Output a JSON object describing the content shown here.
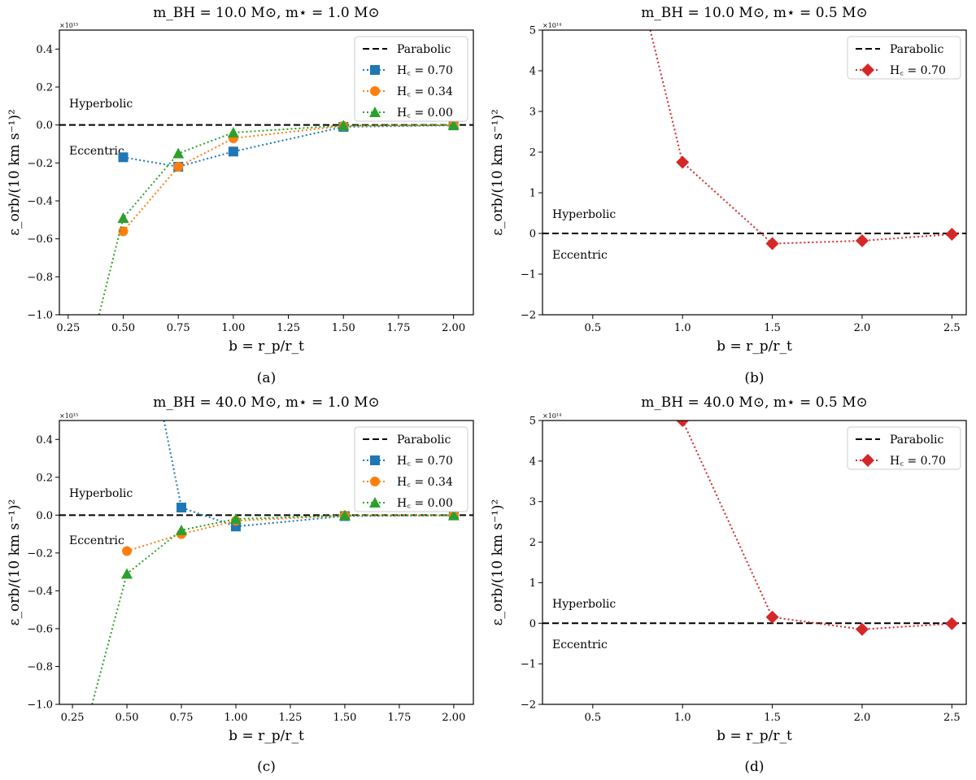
{
  "colors": {
    "blue": "#1f77b4",
    "orange": "#ff7f0e",
    "green": "#2ca02c",
    "red": "#d62728"
  },
  "chart_data": [
    {
      "type": "line",
      "title": "m_BH = 10.0 M⊙, m⋆ = 1.0 M⊙",
      "caption": "(a)",
      "xlabel": "b = r_p/r_t",
      "ylabel": "ε_orb/(10 km s⁻¹)²",
      "multiplier": "×10¹⁵",
      "xlim": [
        0.21,
        2.09
      ],
      "ylim": [
        -1.0,
        0.5
      ],
      "xticks": [
        0.25,
        0.5,
        0.75,
        1.0,
        1.25,
        1.5,
        1.75,
        2.0
      ],
      "xtick_labels": [
        "0.25",
        "0.50",
        "0.75",
        "1.00",
        "1.25",
        "1.50",
        "1.75",
        "2.00"
      ],
      "yticks": [
        -1.0,
        -0.8,
        -0.6,
        -0.4,
        -0.2,
        0.0,
        0.2,
        0.4
      ],
      "ytick_labels": [
        "−1.0",
        "−0.8",
        "−0.6",
        "−0.4",
        "−0.2",
        "0.0",
        "0.2",
        "0.4"
      ],
      "region_labels": {
        "upper": "Hyperbolic",
        "lower": "Eccentric"
      },
      "parabolic_label": "Parabolic",
      "series": [
        {
          "name": "H_c = 0.70",
          "color": "#1f77b4",
          "marker": "square",
          "x": [
            0.5,
            0.75,
            1.0,
            1.5,
            2.0
          ],
          "y": [
            -0.17,
            -0.22,
            -0.14,
            -0.01,
            -0.002
          ]
        },
        {
          "name": "H_c = 0.34",
          "color": "#ff7f0e",
          "marker": "circle",
          "x": [
            0.5,
            0.75,
            1.0,
            1.5,
            2.0
          ],
          "y": [
            -0.56,
            -0.22,
            -0.07,
            -0.005,
            -0.001
          ]
        },
        {
          "name": "H_c = 0.00",
          "color": "#2ca02c",
          "marker": "triangle",
          "x": [
            0.39,
            0.5,
            0.75,
            1.0,
            1.5,
            2.0
          ],
          "y": [
            -1.0,
            -0.49,
            -0.15,
            -0.04,
            -0.003,
            -0.001
          ]
        }
      ]
    },
    {
      "type": "line",
      "title": "m_BH = 10.0 M⊙, m⋆ = 0.5 M⊙",
      "caption": "(b)",
      "xlabel": "b = r_p/r_t",
      "ylabel": "ε_orb/(10 km s⁻¹)²",
      "multiplier": "×10¹⁴",
      "xlim": [
        0.22,
        2.58
      ],
      "ylim": [
        -2,
        5
      ],
      "xticks": [
        0.5,
        1.0,
        1.5,
        2.0,
        2.5
      ],
      "xtick_labels": [
        "0.5",
        "1.0",
        "1.5",
        "2.0",
        "2.5"
      ],
      "yticks": [
        -2,
        -1,
        0,
        1,
        2,
        3,
        4,
        5
      ],
      "ytick_labels": [
        "−2",
        "−1",
        "0",
        "1",
        "2",
        "3",
        "4",
        "5"
      ],
      "region_labels": {
        "upper": "Hyperbolic",
        "lower": "Eccentric"
      },
      "parabolic_label": "Parabolic",
      "series": [
        {
          "name": "H_c = 0.70",
          "color": "#d62728",
          "marker": "diamond",
          "x": [
            0.82,
            1.0,
            1.5,
            2.0,
            2.5
          ],
          "y": [
            5.0,
            1.75,
            -0.25,
            -0.18,
            -0.02
          ]
        }
      ]
    },
    {
      "type": "line",
      "title": "m_BH = 40.0 M⊙, m⋆ = 1.0 M⊙",
      "caption": "(c)",
      "xlabel": "b = r_p/r_t",
      "ylabel": "ε_orb/(10 km s⁻¹)²",
      "multiplier": "×10¹⁵",
      "xlim": [
        0.19,
        2.09
      ],
      "ylim": [
        -1.0,
        0.5
      ],
      "xticks": [
        0.25,
        0.5,
        0.75,
        1.0,
        1.25,
        1.5,
        1.75,
        2.0
      ],
      "xtick_labels": [
        "0.25",
        "0.50",
        "0.75",
        "1.00",
        "1.25",
        "1.50",
        "1.75",
        "2.00"
      ],
      "yticks": [
        -1.0,
        -0.8,
        -0.6,
        -0.4,
        -0.2,
        0.0,
        0.2,
        0.4
      ],
      "ytick_labels": [
        "−1.0",
        "−0.8",
        "−0.6",
        "−0.4",
        "−0.2",
        "0.0",
        "0.2",
        "0.4"
      ],
      "region_labels": {
        "upper": "Hyperbolic",
        "lower": "Eccentric"
      },
      "parabolic_label": "Parabolic",
      "series": [
        {
          "name": "H_c = 0.70",
          "color": "#1f77b4",
          "marker": "square",
          "x": [
            0.67,
            0.75,
            1.0,
            1.5,
            2.0
          ],
          "y": [
            0.5,
            0.04,
            -0.06,
            -0.005,
            -0.001
          ]
        },
        {
          "name": "H_c = 0.34",
          "color": "#ff7f0e",
          "marker": "circle",
          "x": [
            0.5,
            0.75,
            1.0,
            1.5,
            2.0
          ],
          "y": [
            -0.19,
            -0.1,
            -0.03,
            -0.002,
            -0.001
          ]
        },
        {
          "name": "H_c = 0.00",
          "color": "#2ca02c",
          "marker": "triangle",
          "x": [
            0.34,
            0.5,
            0.75,
            1.0,
            1.5,
            2.0
          ],
          "y": [
            -1.0,
            -0.31,
            -0.08,
            -0.02,
            -0.002,
            -0.001
          ]
        }
      ]
    },
    {
      "type": "line",
      "title": "m_BH = 40.0 M⊙, m⋆ = 0.5 M⊙",
      "caption": "(d)",
      "xlabel": "b = r_p/r_t",
      "ylabel": "ε_orb/(10 km s⁻¹)²",
      "multiplier": "×10¹⁴",
      "xlim": [
        0.22,
        2.58
      ],
      "ylim": [
        -2,
        5
      ],
      "xticks": [
        0.5,
        1.0,
        1.5,
        2.0,
        2.5
      ],
      "xtick_labels": [
        "0.5",
        "1.0",
        "1.5",
        "2.0",
        "2.5"
      ],
      "yticks": [
        -2,
        -1,
        0,
        1,
        2,
        3,
        4,
        5
      ],
      "ytick_labels": [
        "−2",
        "−1",
        "0",
        "1",
        "2",
        "3",
        "4",
        "5"
      ],
      "region_labels": {
        "upper": "Hyperbolic",
        "lower": "Eccentric"
      },
      "parabolic_label": "Parabolic",
      "series": [
        {
          "name": "H_c = 0.70",
          "color": "#d62728",
          "marker": "diamond",
          "x": [
            1.0,
            1.5,
            2.0,
            2.5
          ],
          "y": [
            5.0,
            0.15,
            -0.15,
            -0.01
          ]
        }
      ]
    }
  ]
}
